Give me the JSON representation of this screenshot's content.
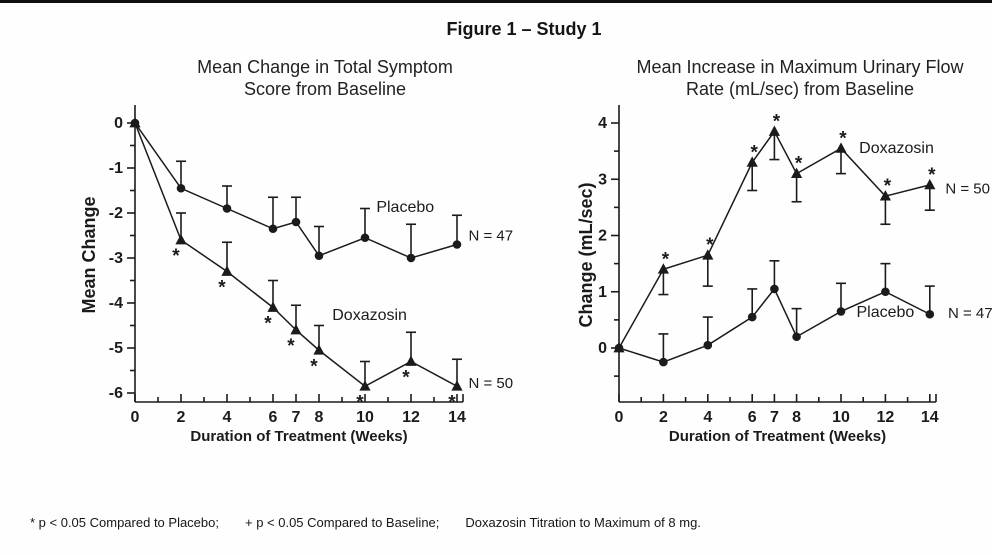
{
  "figure_title": "Figure 1 – Study 1",
  "footnote": {
    "parts": [
      "* p < 0.05 Compared to Placebo;",
      "+ p < 0.05 Compared to Baseline;",
      "Doxazosin Titration to Maximum of 8 mg."
    ]
  },
  "colors": {
    "ink": "#1b1b1b",
    "background": "#fefefe"
  },
  "chart_data": [
    {
      "id": "left",
      "type": "line",
      "title_lines": [
        "Mean Change in Total Symptom",
        "Score from Baseline"
      ],
      "xlabel": "Duration of Treatment (Weeks)",
      "ylabel": "Mean Change",
      "x_weeks": [
        0,
        2,
        4,
        6,
        7,
        8,
        10,
        12,
        14
      ],
      "x_axis_ticks": [
        0,
        1,
        2,
        3,
        4,
        5,
        6,
        7,
        8,
        9,
        10,
        11,
        12,
        13,
        14
      ],
      "x_tick_labels": [
        0,
        2,
        4,
        6,
        7,
        8,
        10,
        12,
        14
      ],
      "y_major_ticks": [
        0,
        -1,
        -2,
        -3,
        -4,
        -5,
        -6
      ],
      "y_minor_ticks": [
        -0.5,
        -1.5,
        -2.5,
        -3.5,
        -4.5,
        -5.5
      ],
      "xlim": [
        0,
        14.3
      ],
      "ylim": [
        -6.2,
        0.4
      ],
      "grid": false,
      "series": [
        {
          "name": "Placebo",
          "n": 47,
          "marker": "circle",
          "values": [
            0,
            -1.45,
            -1.9,
            -2.35,
            -2.2,
            -2.95,
            -2.55,
            -3.0,
            -2.7
          ],
          "err": [
            0,
            0.6,
            0.5,
            0.7,
            0.55,
            0.65,
            0.65,
            0.75,
            0.65
          ],
          "err_dir": "up",
          "sig_marker": "",
          "sig_side": "",
          "label": {
            "text": "Placebo",
            "week": 11.75,
            "value": -1.87,
            "anchor": "middle"
          },
          "n_label": {
            "text": "N = 47",
            "week": 14.5,
            "value": -2.5,
            "anchor": "start"
          }
        },
        {
          "name": "Doxazosin",
          "n": 50,
          "marker": "triangle",
          "values": [
            0,
            -2.6,
            -3.3,
            -4.1,
            -4.6,
            -5.05,
            -5.85,
            -5.3,
            -5.85
          ],
          "err": [
            0,
            0.6,
            0.65,
            0.6,
            0.55,
            0.55,
            0.55,
            0.65,
            0.6
          ],
          "err_dir": "up",
          "sig_marker": "*",
          "sig_side": "below",
          "label": {
            "text": "Doxazosin",
            "week": 10.2,
            "value": -4.27,
            "anchor": "middle"
          },
          "n_label": {
            "text": "N = 50",
            "week": 14.5,
            "value": -5.78,
            "anchor": "start"
          }
        }
      ]
    },
    {
      "id": "right",
      "type": "line",
      "title_lines": [
        "Mean Increase in Maximum Urinary Flow",
        "Rate (mL/sec) from Baseline"
      ],
      "xlabel": "Duration of Treatment (Weeks)",
      "ylabel": "Change (mL/sec)",
      "x_weeks": [
        0,
        2,
        4,
        6,
        7,
        8,
        10,
        12,
        14
      ],
      "x_axis_ticks": [
        0,
        1,
        2,
        3,
        4,
        5,
        6,
        7,
        8,
        9,
        10,
        11,
        12,
        13,
        14
      ],
      "x_tick_labels": [
        0,
        2,
        4,
        6,
        7,
        8,
        10,
        12,
        14
      ],
      "y_major_ticks": [
        4,
        3,
        2,
        1,
        0
      ],
      "y_minor_ticks": [
        3.5,
        2.5,
        1.5,
        0.5,
        -0.5
      ],
      "xlim": [
        0,
        14.3
      ],
      "ylim": [
        -0.96,
        4.32
      ],
      "grid": false,
      "series": [
        {
          "name": "Doxazosin",
          "n": 50,
          "marker": "triangle",
          "values": [
            0,
            1.4,
            1.65,
            3.3,
            3.85,
            3.1,
            3.55,
            2.7,
            2.9
          ],
          "err": [
            0,
            0.45,
            0.55,
            0.5,
            0.5,
            0.5,
            0.45,
            0.5,
            0.45
          ],
          "err_dir": "down",
          "sig_marker": "*",
          "sig_side": "above",
          "label": {
            "text": "Doxazosin",
            "week": 12.5,
            "value": 3.56,
            "anchor": "middle"
          },
          "n_label": {
            "text": "N = 50",
            "week": 14.7,
            "value": 2.84,
            "anchor": "start"
          }
        },
        {
          "name": "Placebo",
          "n": 47,
          "marker": "circle",
          "values": [
            0,
            -0.25,
            0.05,
            0.55,
            1.05,
            0.2,
            0.65,
            1.0,
            0.6
          ],
          "err": [
            0,
            0.5,
            0.5,
            0.5,
            0.5,
            0.5,
            0.5,
            0.5,
            0.5
          ],
          "err_dir": "up",
          "sig_marker": "",
          "sig_side": "",
          "label": {
            "text": "Placebo",
            "week": 12.0,
            "value": 0.64,
            "anchor": "middle"
          },
          "n_label": {
            "text": "N = 47",
            "week": 14.82,
            "value": 0.62,
            "anchor": "start"
          }
        }
      ]
    }
  ]
}
